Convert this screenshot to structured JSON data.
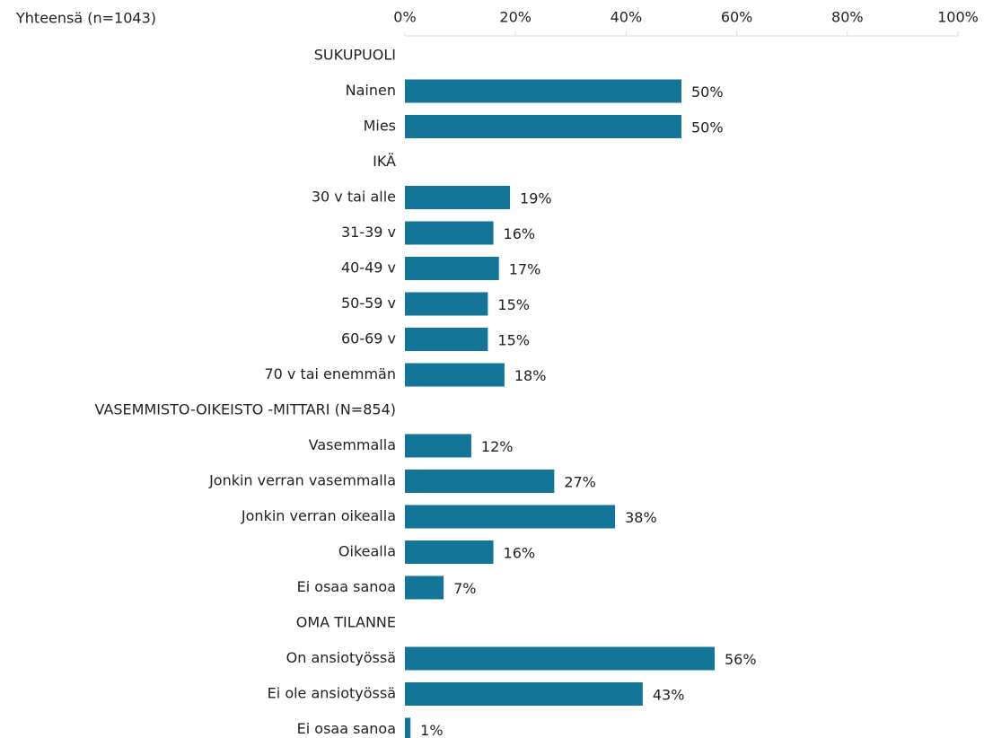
{
  "chart_data": {
    "type": "bar",
    "orientation": "horizontal",
    "title": "Yhteensä (n=1043)",
    "categories": [
      "SUKUPUOLI",
      "Nainen",
      "Mies",
      "IKÄ",
      "30 v tai alle",
      "31-39 v",
      "40-49 v",
      "50-59 v",
      "60-69 v",
      "70 v tai enemmän",
      "VASEMMISTO-OIKEISTO -MITTARI (N=854)",
      "Vasemmalla",
      "Jonkin verran vasemmalla",
      "Jonkin verran oikealla",
      "Oikealla",
      "Ei osaa sanoa",
      "OMA TILANNE",
      "On ansiotyössä",
      "Ei ole ansiotyössä",
      "Ei osaa sanoa"
    ],
    "values": [
      null,
      50,
      50,
      null,
      19,
      16,
      17,
      15,
      15,
      18,
      null,
      12,
      27,
      38,
      16,
      7,
      null,
      56,
      43,
      1
    ],
    "value_labels": [
      null,
      "50%",
      "50%",
      null,
      "19%",
      "16%",
      "17%",
      "15%",
      "15%",
      "18%",
      null,
      "12%",
      "27%",
      "38%",
      "16%",
      "7%",
      null,
      "56%",
      "43%",
      "1%"
    ],
    "color": "#137699",
    "xlim": [
      0,
      100
    ],
    "xticks": [
      {
        "value": 0,
        "label": "0%"
      },
      {
        "value": 20,
        "label": "20%"
      },
      {
        "value": 40,
        "label": "40%"
      },
      {
        "value": 60,
        "label": "60%"
      },
      {
        "value": 80,
        "label": "80%"
      },
      {
        "value": 100,
        "label": "100%"
      }
    ],
    "grid": false
  }
}
